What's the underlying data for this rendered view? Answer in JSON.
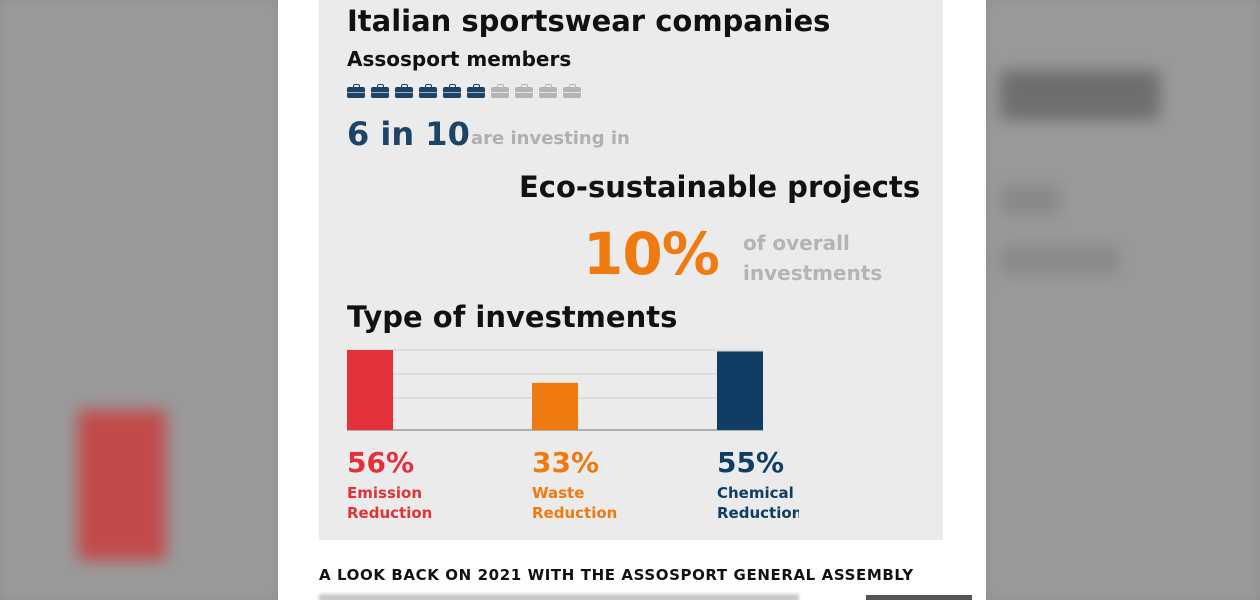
{
  "header": {
    "title": "Italian sportswear companies",
    "subtitle": "Assosport members"
  },
  "members_icons": {
    "total": 10,
    "highlighted": 6,
    "icon": "briefcase-icon",
    "colors": {
      "active": "#1d4466",
      "inactive": "#b5b5b5"
    }
  },
  "stat_ratio": {
    "value": "6 in 10",
    "text": "are investing in"
  },
  "eco": {
    "heading": "Eco-sustainable projects",
    "percent": "10%",
    "percent_text": "of overall investments"
  },
  "chart_data": {
    "type": "bar",
    "title": "Type of investments",
    "categories": [
      "Emission Reduction",
      "Waste Reduction",
      "Chemical Reduction"
    ],
    "values": [
      56,
      33,
      55
    ],
    "value_labels": [
      "56%",
      "33%",
      "55%"
    ],
    "label_lines": [
      [
        "Emission",
        "Reduction"
      ],
      [
        "Waste",
        "Reduction"
      ],
      [
        "Chemical",
        "Reduction"
      ]
    ],
    "colors": [
      "#e3313a",
      "#ee7a10",
      "#0f3d63"
    ],
    "ylim": [
      0,
      56
    ],
    "grid": true
  },
  "footer": {
    "headline": "A LOOK BACK ON 2021 WITH THE ASSOSPORT GENERAL ASSEMBLY"
  },
  "colors": {
    "navy": "#1d4466",
    "orange": "#ee7a10",
    "red": "#e3313a",
    "card_bg": "#ebebeb",
    "muted_text": "#b0b0b0"
  }
}
